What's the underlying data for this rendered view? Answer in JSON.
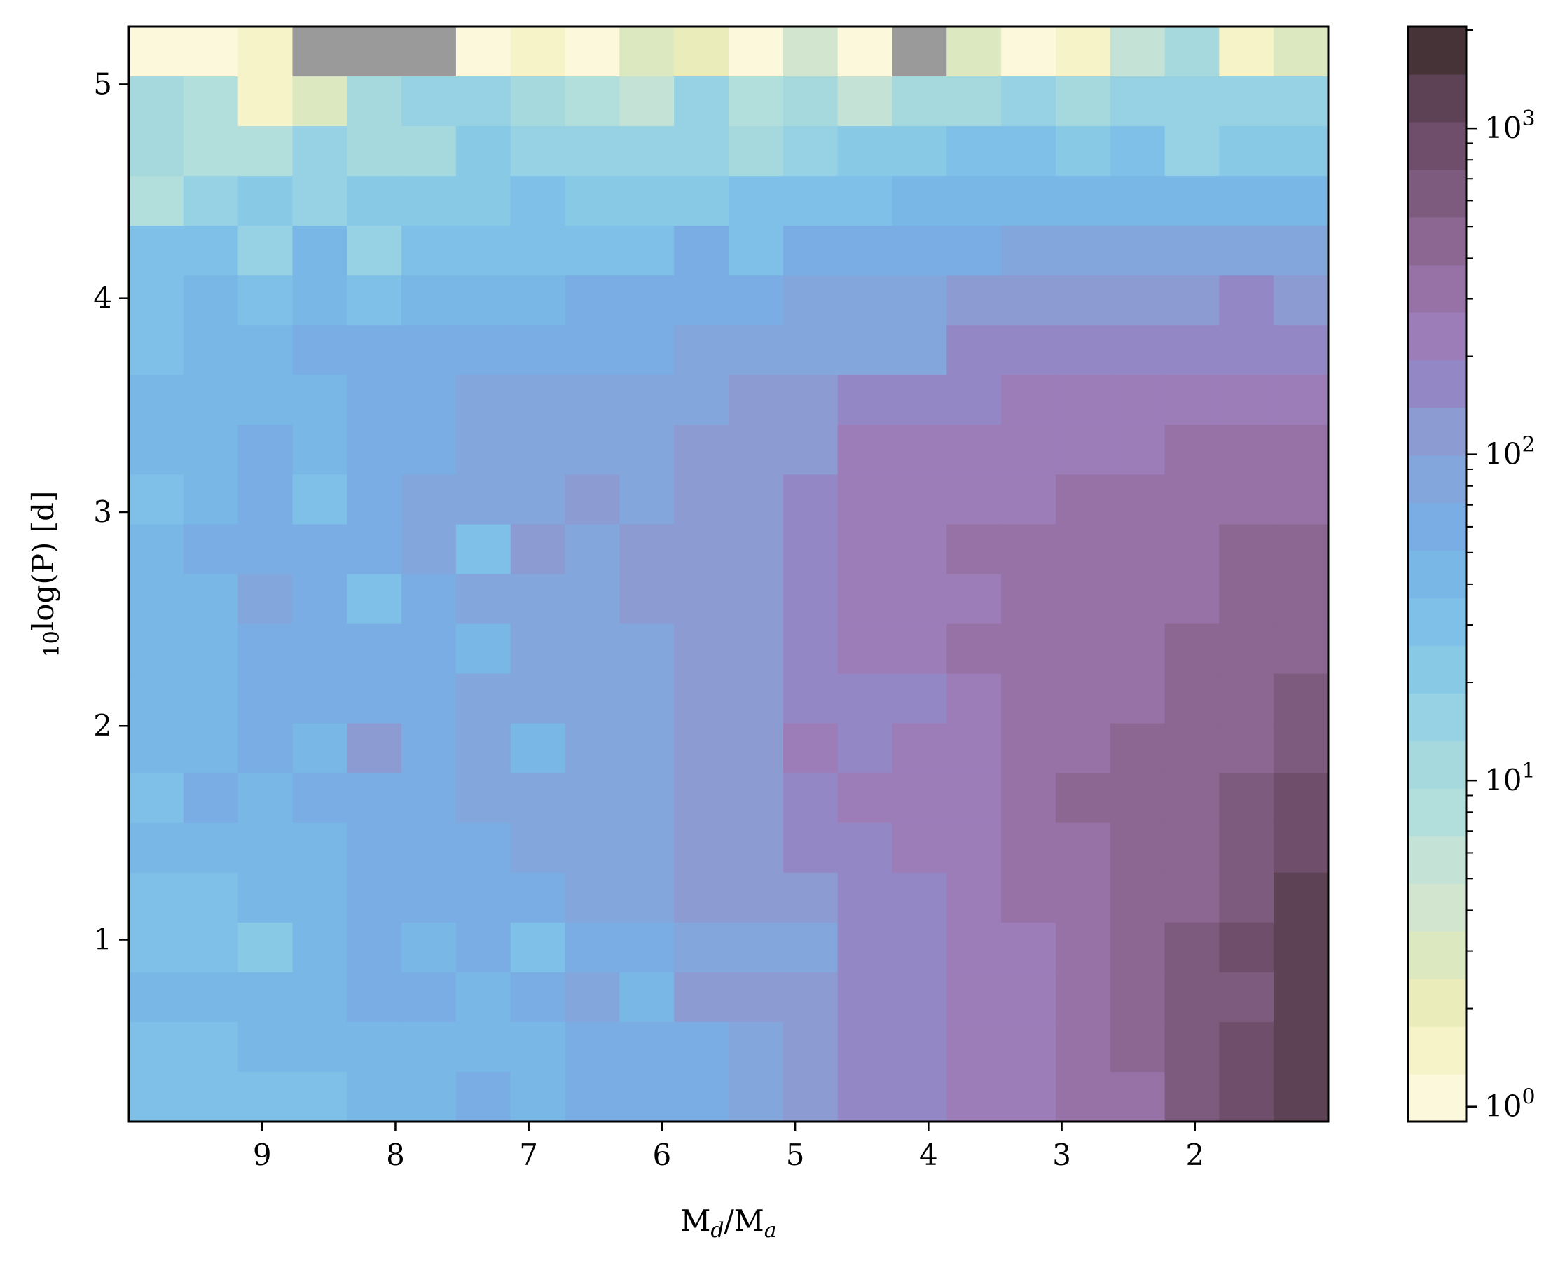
{
  "chart_data": {
    "type": "heatmap",
    "xlabel": "M_d/M_a",
    "ylabel": "10log(P) [d]",
    "x_inverted": true,
    "x_range": [
      10.0,
      1.0
    ],
    "y_range": [
      0.15,
      5.27
    ],
    "x_ticks": [
      9,
      8,
      7,
      6,
      5,
      4,
      3,
      2
    ],
    "y_ticks": [
      1,
      2,
      3,
      4,
      5
    ],
    "colorbar": {
      "scale": "log",
      "range": [
        0.9,
        2050
      ],
      "ticks": [
        {
          "value": 1,
          "mantissa": "10",
          "exp": "0"
        },
        {
          "value": 10,
          "mantissa": "10",
          "exp": "1"
        },
        {
          "value": 100,
          "mantissa": "10",
          "exp": "2"
        },
        {
          "value": 1000,
          "mantissa": "10",
          "exp": "3"
        }
      ],
      "palette": [
        "#fcf8dc",
        "#f6f3c8",
        "#eaedb9",
        "#dce8bf",
        "#d2e6cf",
        "#c4e3d6",
        "#b2dedc",
        "#a5d9de",
        "#96d2e3",
        "#88c9e6",
        "#7ec0e8",
        "#78b7e6",
        "#7aade3",
        "#83a6dd",
        "#8d9bd3",
        "#9487c6",
        "#9c7db8",
        "#9672a6",
        "#8b6792",
        "#7d5b7e",
        "#6e4e6b",
        "#5d4255",
        "#453338"
      ],
      "nan_color": "#9a9a9a"
    },
    "grid_levels": [
      [
        0,
        0,
        1,
        -1,
        -1,
        -1,
        0,
        1,
        0,
        3,
        2,
        0,
        4,
        0,
        -1,
        3,
        0,
        1,
        5,
        7,
        1,
        3
      ],
      [
        7,
        6,
        1,
        3,
        7,
        8,
        8,
        7,
        6,
        5,
        8,
        6,
        7,
        5,
        7,
        7,
        8,
        7,
        8,
        8,
        8,
        8
      ],
      [
        7,
        6,
        6,
        8,
        7,
        7,
        9,
        8,
        8,
        8,
        8,
        7,
        8,
        9,
        9,
        10,
        10,
        9,
        10,
        8,
        9,
        9
      ],
      [
        6,
        8,
        9,
        8,
        9,
        9,
        9,
        10,
        9,
        9,
        9,
        10,
        10,
        10,
        11,
        11,
        11,
        11,
        11,
        11,
        11,
        11
      ],
      [
        10,
        10,
        8,
        11,
        8,
        10,
        10,
        10,
        10,
        10,
        12,
        10,
        12,
        12,
        12,
        12,
        13,
        13,
        13,
        13,
        13,
        13
      ],
      [
        10,
        11,
        10,
        11,
        10,
        11,
        11,
        11,
        12,
        12,
        12,
        12,
        13,
        13,
        13,
        14,
        14,
        14,
        14,
        14,
        15,
        14
      ],
      [
        10,
        11,
        11,
        12,
        12,
        12,
        12,
        12,
        12,
        12,
        13,
        13,
        13,
        13,
        13,
        15,
        15,
        15,
        15,
        15,
        15,
        15
      ],
      [
        11,
        11,
        11,
        11,
        12,
        12,
        13,
        13,
        13,
        13,
        13,
        14,
        14,
        15,
        15,
        15,
        16,
        16,
        16,
        16,
        16,
        16
      ],
      [
        11,
        11,
        12,
        11,
        12,
        12,
        13,
        13,
        13,
        13,
        14,
        14,
        14,
        16,
        16,
        16,
        16,
        16,
        16,
        17,
        17,
        17
      ],
      [
        10,
        11,
        12,
        10,
        12,
        13,
        13,
        13,
        14,
        13,
        14,
        14,
        15,
        16,
        16,
        16,
        16,
        17,
        17,
        17,
        17,
        17
      ],
      [
        11,
        12,
        12,
        12,
        12,
        13,
        10,
        14,
        13,
        14,
        14,
        14,
        15,
        16,
        16,
        17,
        17,
        17,
        17,
        17,
        18,
        18
      ],
      [
        11,
        11,
        13,
        12,
        10,
        12,
        13,
        13,
        13,
        14,
        14,
        14,
        15,
        16,
        16,
        16,
        17,
        17,
        17,
        17,
        18,
        18
      ],
      [
        11,
        11,
        12,
        12,
        12,
        12,
        11,
        13,
        13,
        13,
        14,
        14,
        15,
        16,
        16,
        17,
        17,
        17,
        17,
        18,
        18,
        18
      ],
      [
        11,
        11,
        12,
        12,
        12,
        12,
        13,
        13,
        13,
        13,
        14,
        14,
        15,
        15,
        15,
        16,
        17,
        17,
        17,
        18,
        18,
        19
      ],
      [
        11,
        11,
        12,
        11,
        14,
        12,
        13,
        11,
        13,
        13,
        14,
        14,
        16,
        15,
        16,
        16,
        17,
        17,
        18,
        18,
        18,
        19
      ],
      [
        10,
        12,
        11,
        12,
        12,
        12,
        13,
        13,
        13,
        13,
        14,
        14,
        15,
        16,
        16,
        16,
        17,
        18,
        18,
        18,
        19,
        20
      ],
      [
        11,
        11,
        11,
        11,
        12,
        12,
        12,
        13,
        13,
        13,
        14,
        14,
        15,
        15,
        16,
        16,
        17,
        17,
        18,
        18,
        19,
        20
      ],
      [
        10,
        10,
        11,
        11,
        12,
        12,
        12,
        12,
        13,
        13,
        14,
        14,
        14,
        15,
        15,
        16,
        17,
        17,
        18,
        18,
        19,
        21
      ],
      [
        10,
        10,
        9,
        11,
        12,
        11,
        12,
        10,
        12,
        12,
        13,
        13,
        13,
        15,
        15,
        16,
        16,
        17,
        18,
        19,
        20,
        21
      ],
      [
        11,
        11,
        11,
        11,
        12,
        12,
        11,
        12,
        13,
        11,
        14,
        14,
        14,
        15,
        15,
        16,
        16,
        17,
        18,
        19,
        19,
        21
      ],
      [
        10,
        10,
        11,
        11,
        11,
        11,
        11,
        11,
        12,
        12,
        12,
        13,
        14,
        15,
        15,
        16,
        16,
        17,
        18,
        19,
        20,
        21
      ],
      [
        10,
        10,
        10,
        10,
        11,
        11,
        12,
        11,
        12,
        12,
        12,
        13,
        14,
        15,
        15,
        16,
        16,
        17,
        17,
        19,
        20,
        21
      ]
    ]
  }
}
